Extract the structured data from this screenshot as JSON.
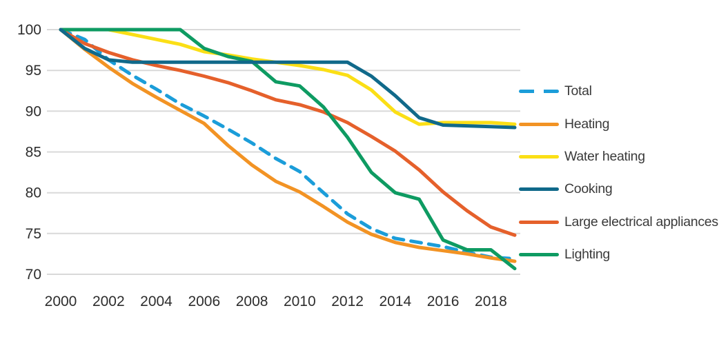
{
  "chart_data": {
    "type": "line",
    "title": "",
    "xlabel": "",
    "ylabel": "",
    "x": [
      2000,
      2001,
      2002,
      2003,
      2004,
      2005,
      2006,
      2007,
      2008,
      2009,
      2010,
      2011,
      2012,
      2013,
      2014,
      2015,
      2016,
      2017,
      2018,
      2019
    ],
    "x_ticks": [
      2000,
      2002,
      2004,
      2006,
      2008,
      2010,
      2012,
      2014,
      2016,
      2018
    ],
    "y_ticks": [
      70,
      75,
      80,
      85,
      90,
      95,
      100
    ],
    "ylim": [
      70,
      100
    ],
    "grid": "horizontal",
    "gridline_color": "#d9d9d9",
    "legend_position": "right",
    "series": [
      {
        "id": "total",
        "name": "Total",
        "color": "#1b9dd9",
        "dashed": true,
        "values": [
          100,
          98.8,
          96.3,
          94.4,
          92.7,
          90.9,
          89.4,
          87.8,
          86.1,
          84.2,
          82.6,
          80.0,
          77.4,
          75.6,
          74.4,
          73.9,
          73.4,
          72.7,
          72.1,
          71.9
        ]
      },
      {
        "id": "heating",
        "name": "Heating",
        "color": "#f29324",
        "dashed": false,
        "values": [
          100,
          97.6,
          95.4,
          93.4,
          91.7,
          90.1,
          88.5,
          85.8,
          83.4,
          81.4,
          80.1,
          78.3,
          76.4,
          74.9,
          73.9,
          73.3,
          72.9,
          72.5,
          72.0,
          71.6
        ]
      },
      {
        "id": "water-heating",
        "name": "Water heating",
        "color": "#fbdf16",
        "dashed": false,
        "values": [
          100,
          100,
          100,
          99.4,
          98.8,
          98.2,
          97.3,
          96.9,
          96.4,
          96.0,
          95.6,
          95.1,
          94.4,
          92.6,
          89.9,
          88.4,
          88.6,
          88.6,
          88.6,
          88.4
        ]
      },
      {
        "id": "cooking",
        "name": "Cooking",
        "color": "#10698a",
        "dashed": false,
        "values": [
          100,
          97.7,
          96.3,
          96.0,
          96.0,
          96.0,
          96.0,
          96.0,
          96.0,
          96.0,
          96.0,
          96.0,
          96.0,
          94.3,
          91.9,
          89.2,
          88.3,
          88.2,
          88.1,
          88.0
        ]
      },
      {
        "id": "large-electrical-appliances",
        "name": "Large electrical appliances",
        "color": "#e5602b",
        "dashed": false,
        "values": [
          100,
          98.3,
          97.2,
          96.3,
          95.6,
          95.0,
          94.3,
          93.5,
          92.5,
          91.4,
          90.8,
          89.9,
          88.6,
          86.9,
          85.1,
          82.8,
          80.1,
          77.8,
          75.8,
          74.8
        ]
      },
      {
        "id": "lighting",
        "name": "Lighting",
        "color": "#0e9b62",
        "dashed": false,
        "values": [
          100,
          100,
          100,
          100,
          100,
          100,
          97.7,
          96.7,
          96.1,
          93.6,
          93.1,
          90.5,
          86.8,
          82.5,
          80.0,
          79.2,
          74.2,
          73.0,
          73.0,
          70.7
        ]
      }
    ]
  }
}
